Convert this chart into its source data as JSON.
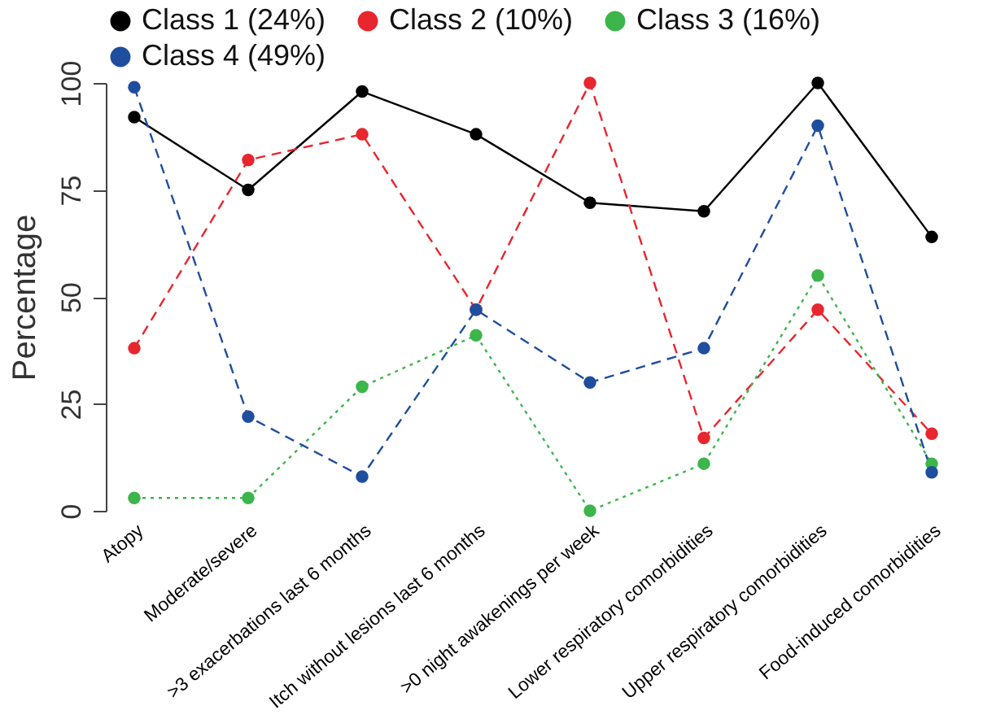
{
  "chart_data": {
    "type": "line",
    "ylabel": "Percentage",
    "categories": [
      "Atopy",
      "Moderate/severe",
      ">3 exacerbations last 6 months",
      "Itch without lesions last 6 months",
      ">0 night awakenings per week",
      "Lower respiratory comorbidities",
      "Upper respiratory comorbidities",
      "Food-induced comorbidities"
    ],
    "series": [
      {
        "name": "Class 1 (24%)",
        "color": "#000000",
        "line_style": "solid",
        "values": [
          92,
          75,
          98,
          88,
          72,
          70,
          100,
          64
        ]
      },
      {
        "name": "Class 2 (10%)",
        "color": "#e8262d",
        "line_style": "dashed",
        "values": [
          38,
          82,
          88,
          47,
          100,
          17,
          47,
          18
        ]
      },
      {
        "name": "Class 3 (16%)",
        "color": "#3cb54a",
        "line_style": "dotted",
        "values": [
          3,
          3,
          29,
          41,
          0,
          11,
          55,
          11
        ]
      },
      {
        "name": "Class 4 (49%)",
        "color": "#1f4e9e",
        "line_style": "dashed",
        "values": [
          99,
          22,
          8,
          47,
          30,
          38,
          90,
          9
        ]
      }
    ],
    "ylim": [
      0,
      100
    ],
    "yticks": [
      0,
      25,
      50,
      75,
      100
    ],
    "grid": false,
    "legend": "top",
    "marker": "circle"
  }
}
